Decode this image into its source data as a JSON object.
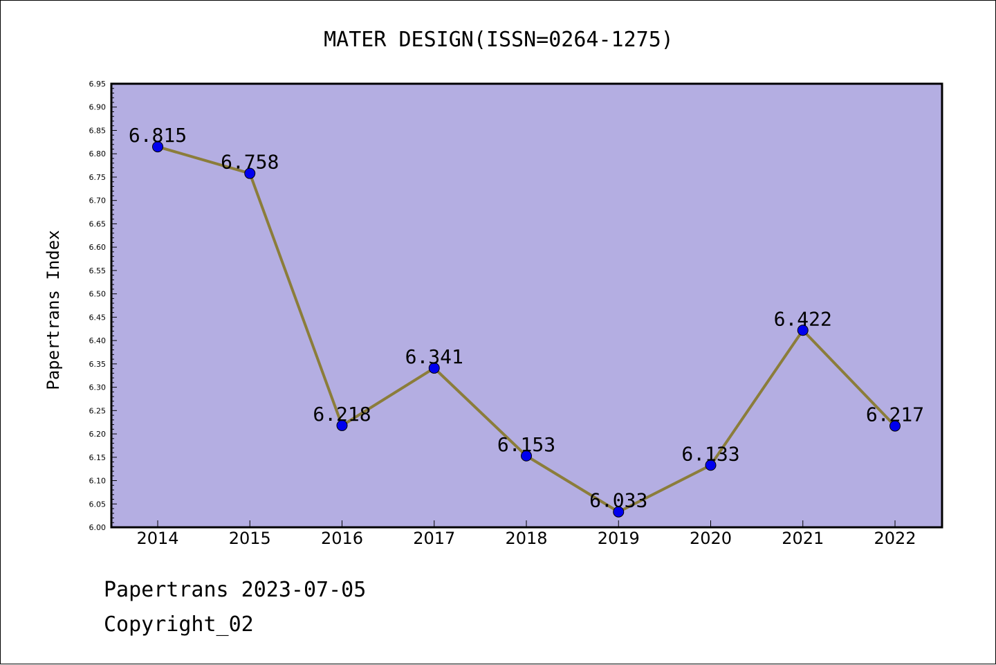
{
  "chart_data": {
    "type": "line",
    "title": "MATER DESIGN(ISSN=0264-1275)",
    "xlabel": "",
    "ylabel": "Papertrans Index",
    "categories": [
      "2014",
      "2015",
      "2016",
      "2017",
      "2018",
      "2019",
      "2020",
      "2021",
      "2022"
    ],
    "series": [
      {
        "values": [
          6.815,
          6.758,
          6.218,
          6.341,
          6.153,
          6.033,
          6.133,
          6.422,
          6.217
        ],
        "data_labels": [
          "6.815",
          "6.758",
          "6.218",
          "6.341",
          "6.153",
          "6.033",
          "6.133",
          "6.422",
          "6.217"
        ],
        "line_color": "#8b7d3a",
        "marker_color": "#0000ee"
      }
    ],
    "ylim": [
      6.0,
      6.95
    ],
    "ytick_labels": [
      "6.00",
      "6.05",
      "6.10",
      "6.15",
      "6.20",
      "6.25",
      "6.30",
      "6.35",
      "6.40",
      "6.45",
      "6.50",
      "6.55",
      "6.60",
      "6.65",
      "6.70",
      "6.75",
      "6.80",
      "6.85",
      "6.90",
      "6.95"
    ],
    "grid": false,
    "legend": "none",
    "plot_background": "#b4aee2"
  },
  "footer": {
    "line1": "Papertrans 2023-07-05",
    "line2": "Copyright_02"
  }
}
